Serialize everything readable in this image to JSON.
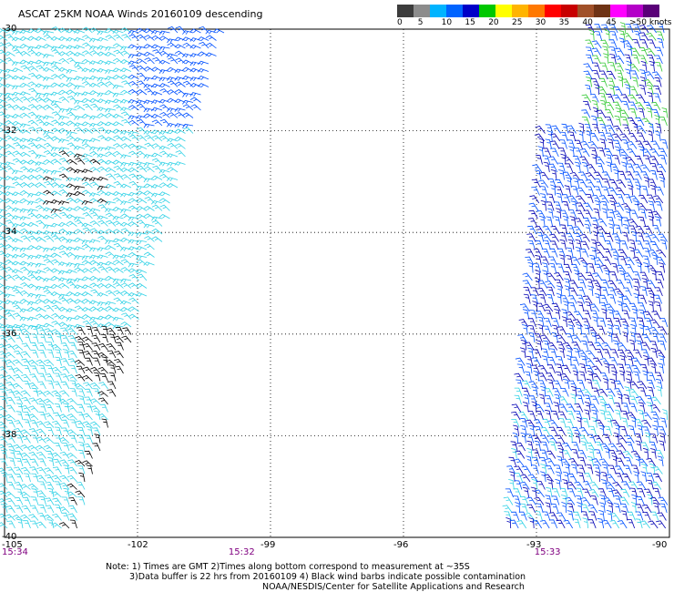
{
  "title": "ASCAT 25KM NOAA Winds 20160109 descending",
  "colorbar": {
    "colors": [
      "#3c3c3c",
      "#8c8c8c",
      "#00b4ff",
      "#0064ff",
      "#0000c8",
      "#00c800",
      "#ffff00",
      "#ffb400",
      "#ff7800",
      "#ff0000",
      "#c80000",
      "#a05028",
      "#6e3214",
      "#ff00ff",
      "#b400c8",
      "#5a0078"
    ],
    "labels": [
      "0",
      "5",
      "10",
      "15",
      "20",
      "25",
      "30",
      "35",
      "40",
      "45",
      ">50 knots"
    ]
  },
  "lat_labels": [
    "-30",
    "-32",
    "-34",
    "-36",
    "-38",
    "-40"
  ],
  "lon_labels": [
    "-105",
    "-102",
    "-99",
    "-96",
    "-93",
    "-90"
  ],
  "time_labels": [
    {
      "text": "15:34",
      "lon": -105
    },
    {
      "text": "15:32",
      "lon": -99.7
    },
    {
      "text": "15:33",
      "lon": -92.8
    }
  ],
  "notes": [
    "Note: 1) Times are GMT 2)Times along bottom correspond to measurement at ~35S",
    "3)Data buffer is 22 hrs from 20160109 4) Black wind barbs indicate possible contamination",
    "NOAA/NESDIS/Center for Satellite Applications and Research"
  ],
  "swaths": [
    {
      "name": "west-swath",
      "lon_min": -105,
      "lon_max_north": -100,
      "lon_max_south": -103.4
    },
    {
      "name": "east-swath",
      "lon_min_north": -92.6,
      "lon_min_south": -93.6,
      "lon_max": -90
    }
  ],
  "barb_colors": {
    "contaminated": "#000000",
    "low": "#32d2e6",
    "mid": "#0050ff",
    "high": "#0000b4",
    "strong": "#32c832"
  }
}
